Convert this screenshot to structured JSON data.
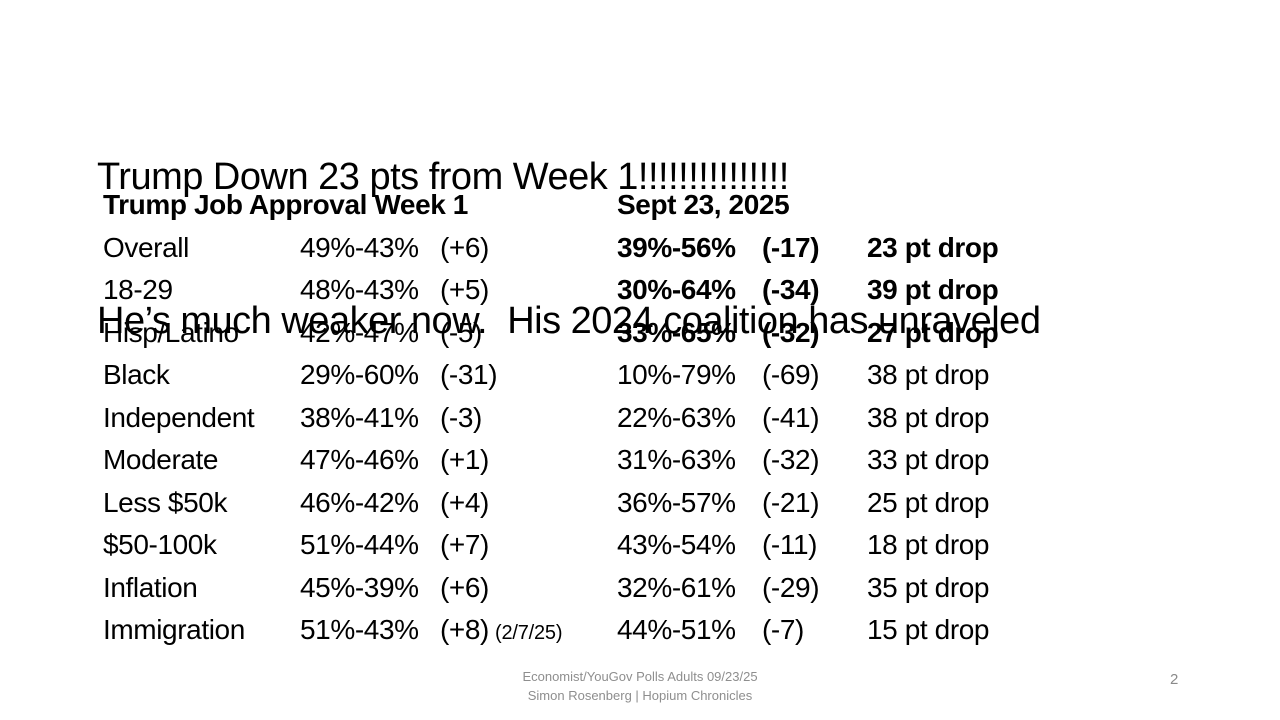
{
  "slide": {
    "title": {
      "line1": "Trump Down 23 pts from Week 1!!!!!!!!!!!!!!!",
      "line2": "He’s much weaker now.  His 2024 coalition has unraveled"
    },
    "table": {
      "header": {
        "week1": "Trump Job Approval Week 1",
        "sept23": "Sept 23, 2025"
      },
      "rows": [
        {
          "label": "Overall",
          "week1": "49%-43%",
          "week1_change": "(+6)",
          "sept23": "39%-56%",
          "sept_change": "(-17)",
          "drop": "23 pt drop",
          "emphasis": true
        },
        {
          "label": "18-29",
          "week1": "48%-43%",
          "week1_change": "(+5)",
          "sept23": "30%-64%",
          "sept_change": "(-34)",
          "drop": "39 pt drop",
          "emphasis": true
        },
        {
          "label": "Hisp/Latino",
          "week1": "42%-47%",
          "week1_change": "(-5)",
          "sept23": "33%-65%",
          "sept_change": "(-32)",
          "drop": "27 pt drop",
          "emphasis": true
        },
        {
          "label": "Black",
          "week1": "29%-60%",
          "week1_change": "(-31)",
          "sept23": "10%-79%",
          "sept_change": "(-69)",
          "drop": "38 pt drop",
          "emphasis": false
        },
        {
          "label": "Independent",
          "week1": "38%-41%",
          "week1_change": "(-3)",
          "sept23": "22%-63%",
          "sept_change": "(-41)",
          "drop": "38 pt drop",
          "emphasis": false
        },
        {
          "label": "Moderate",
          "week1": "47%-46%",
          "week1_change": "(+1)",
          "sept23": "31%-63%",
          "sept_change": "(-32)",
          "drop": "33 pt drop",
          "emphasis": false
        },
        {
          "label": "Less $50k",
          "week1": "46%-42%",
          "week1_change": "(+4)",
          "sept23": "36%-57%",
          "sept_change": "(-21)",
          "drop": "25 pt drop",
          "emphasis": false
        },
        {
          "label": "$50-100k",
          "week1": "51%-44%",
          "week1_change": "(+7)",
          "sept23": "43%-54%",
          "sept_change": "(-11)",
          "drop": "18 pt drop",
          "emphasis": false
        },
        {
          "label": "Inflation",
          "week1": "45%-39%",
          "week1_change": "(+6)",
          "sept23": "32%-61%",
          "sept_change": "(-29)",
          "drop": "35 pt drop",
          "emphasis": false
        },
        {
          "label": "Immigration",
          "week1": "51%-43%",
          "week1_change": "(+8)",
          "note": "(2/7/25)",
          "sept23": "44%-51%",
          "sept_change": "(-7)",
          "drop": "15 pt drop",
          "emphasis": false
        }
      ]
    },
    "footer": {
      "line1": "Economist/YouGov Polls Adults 09/23/25",
      "line2": "Simon Rosenberg | Hopium Chronicles",
      "page_number": "2"
    },
    "colors": {
      "text": "#000000",
      "footer_text": "#8e8e8e",
      "background": "#ffffff"
    }
  }
}
